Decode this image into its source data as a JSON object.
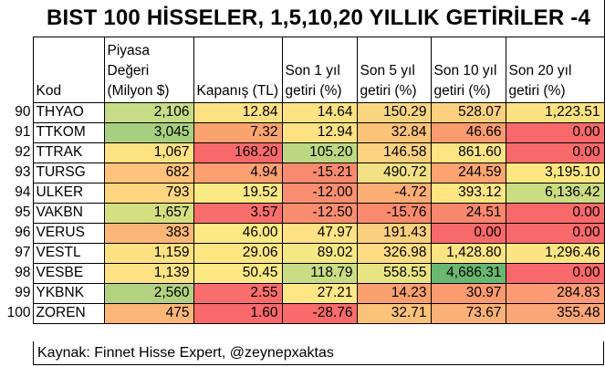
{
  "title": "BIST 100 HİSSELER, 1,5,10,20 YILLIK GETİRİLER -4",
  "headers": {
    "kod": "Kod",
    "piyasa": [
      "Piyasa",
      "Değeri",
      "(Milyon $)"
    ],
    "kapanis": "Kapanış (TL)",
    "son1": [
      "Son 1 yıl",
      "getiri (%)"
    ],
    "son5": [
      "Son 5 yıl",
      "getiri (%)"
    ],
    "son10": [
      "Son 10 yıl",
      "getiri (%)"
    ],
    "son20": [
      "Son 20 yıl",
      "getiri (%)"
    ]
  },
  "rows": [
    {
      "idx": "90",
      "kod": "THYAO",
      "piyasa": "2,106",
      "kapanis": "12.84",
      "son1": "14.64",
      "son5": "150.29",
      "son10": "528.07",
      "son20": "1,223.51"
    },
    {
      "idx": "91",
      "kod": "TTKOM",
      "piyasa": "3,045",
      "kapanis": "7.32",
      "son1": "12.94",
      "son5": "32.84",
      "son10": "46.66",
      "son20": "0.00"
    },
    {
      "idx": "92",
      "kod": "TTRAK",
      "piyasa": "1,067",
      "kapanis": "168.20",
      "son1": "105.20",
      "son5": "146.58",
      "son10": "861.60",
      "son20": "0.00"
    },
    {
      "idx": "93",
      "kod": "TURSG",
      "piyasa": "682",
      "kapanis": "4.94",
      "son1": "-15.21",
      "son5": "490.72",
      "son10": "244.59",
      "son20": "3,195.10"
    },
    {
      "idx": "94",
      "kod": "ULKER",
      "piyasa": "793",
      "kapanis": "19.52",
      "son1": "-12.00",
      "son5": "-4.72",
      "son10": "393.12",
      "son20": "6,136.42"
    },
    {
      "idx": "95",
      "kod": "VAKBN",
      "piyasa": "1,657",
      "kapanis": "3.57",
      "son1": "-12.50",
      "son5": "-15.76",
      "son10": "24.51",
      "son20": "0.00"
    },
    {
      "idx": "96",
      "kod": "VERUS",
      "piyasa": "383",
      "kapanis": "46.00",
      "son1": "47.97",
      "son5": "191.43",
      "son10": "0.00",
      "son20": "0.00"
    },
    {
      "idx": "97",
      "kod": "VESTL",
      "piyasa": "1,159",
      "kapanis": "29.06",
      "son1": "89.02",
      "son5": "326.98",
      "son10": "1,428.80",
      "son20": "1,296.46"
    },
    {
      "idx": "98",
      "kod": "VESBE",
      "piyasa": "1,139",
      "kapanis": "50.45",
      "son1": "118.79",
      "son5": "558.55",
      "son10": "4,686.31",
      "son20": "0.00"
    },
    {
      "idx": "99",
      "kod": "YKBNK",
      "piyasa": "2,560",
      "kapanis": "2.55",
      "son1": "27.21",
      "son5": "14.23",
      "son10": "30.97",
      "son20": "284.83"
    },
    {
      "idx": "100",
      "kod": "ZOREN",
      "piyasa": "475",
      "kapanis": "1.60",
      "son1": "-28.76",
      "son5": "32.71",
      "son10": "73.67",
      "son20": "355.48"
    }
  ],
  "cell_colors": [
    [
      "#c6dc86",
      "#fde283",
      "#fde283",
      "#fbd681",
      "#fbd180",
      "#fde283"
    ],
    [
      "#a7cf80",
      "#f9a46f",
      "#fde283",
      "#fbc27a",
      "#fa9c70",
      "#f8696b"
    ],
    [
      "#fee283",
      "#f8696b",
      "#bdd883",
      "#fcd180",
      "#fde584",
      "#f8696b"
    ],
    [
      "#fdc27b",
      "#fc9f72",
      "#f98a6f",
      "#f1e184",
      "#fca371",
      "#fee783"
    ],
    [
      "#fed67f",
      "#fbe984",
      "#f98f70",
      "#fcae75",
      "#ffe683",
      "#cbdd83"
    ],
    [
      "#d4df81",
      "#f86e6c",
      "#f98d70",
      "#f98a6e",
      "#f9876d",
      "#f8696b"
    ],
    [
      "#fbb678",
      "#ffe984",
      "#fee283",
      "#fccf7f",
      "#f8696b",
      "#f8696b"
    ],
    [
      "#fde183",
      "#fee683",
      "#f4e884",
      "#fddc82",
      "#fde583",
      "#fee583"
    ],
    [
      "#fde384",
      "#ffe984",
      "#c9dd84",
      "#e9e483",
      "#6ab870",
      "#f8696b"
    ],
    [
      "#b3d280",
      "#f86e6c",
      "#fee784",
      "#f9a06f",
      "#fa9a6e",
      "#fc9b73"
    ],
    [
      "#fbb678",
      "#f8696b",
      "#f86a6b",
      "#fbc27a",
      "#fbb077",
      "#fba677"
    ]
  ],
  "source": "Kaynak: Finnet Hisse Expert, @zeynepxaktas"
}
